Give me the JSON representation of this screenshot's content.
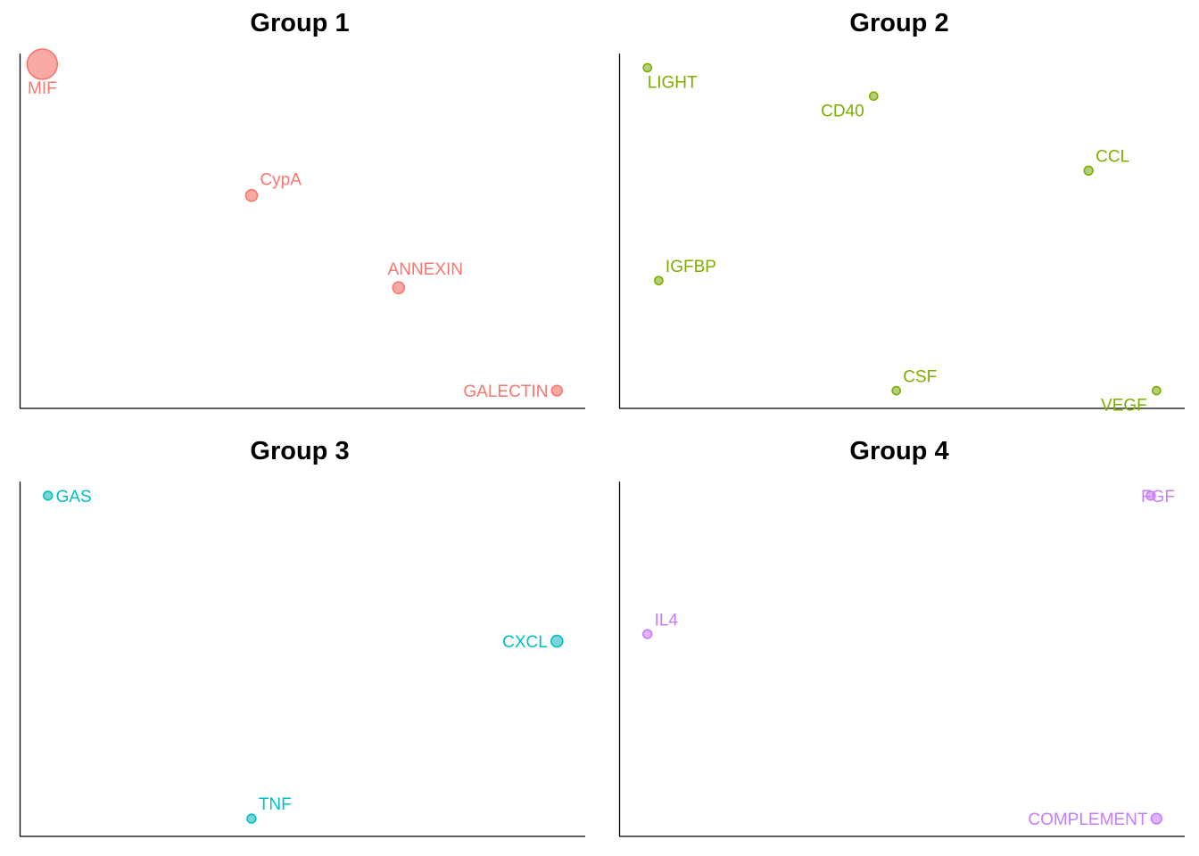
{
  "chart_data": [
    {
      "type": "scatter",
      "title": "Group 1",
      "color": "#F8766D",
      "fill": "#F8A9A4",
      "xlim": [
        0,
        1
      ],
      "ylim": [
        0,
        1
      ],
      "xlabel": "",
      "ylabel": "",
      "grid": false,
      "points": [
        {
          "label": "MIF",
          "x": 0.04,
          "y": 0.97,
          "size": 2.6,
          "label_pos": "below"
        },
        {
          "label": "CypA",
          "x": 0.41,
          "y": 0.6,
          "size": 1.0,
          "label_pos": "upper-right"
        },
        {
          "label": "ANNEXIN",
          "x": 0.67,
          "y": 0.34,
          "size": 1.0,
          "label_pos": "above"
        },
        {
          "label": "GALECTIN",
          "x": 0.95,
          "y": 0.05,
          "size": 0.9,
          "label_pos": "left"
        }
      ]
    },
    {
      "type": "scatter",
      "title": "Group 2",
      "color": "#7CAE00",
      "fill": "#B2D07A",
      "xlim": [
        0,
        1
      ],
      "ylim": [
        0,
        1
      ],
      "xlabel": "",
      "ylabel": "",
      "grid": false,
      "points": [
        {
          "label": "LIGHT",
          "x": 0.05,
          "y": 0.96,
          "size": 0.7,
          "label_pos": "lower-right"
        },
        {
          "label": "CD40",
          "x": 0.45,
          "y": 0.88,
          "size": 0.7,
          "label_pos": "lower-left"
        },
        {
          "label": "CCL",
          "x": 0.83,
          "y": 0.67,
          "size": 0.75,
          "label_pos": "upper-right"
        },
        {
          "label": "IGFBP",
          "x": 0.07,
          "y": 0.36,
          "size": 0.7,
          "label_pos": "upper-right"
        },
        {
          "label": "CSF",
          "x": 0.49,
          "y": 0.05,
          "size": 0.7,
          "label_pos": "upper-right"
        },
        {
          "label": "VEGF",
          "x": 0.95,
          "y": 0.05,
          "size": 0.7,
          "label_pos": "lower-left"
        }
      ]
    },
    {
      "type": "scatter",
      "title": "Group 3",
      "color": "#00BFC4",
      "fill": "#7ED3D5",
      "xlim": [
        0,
        1
      ],
      "ylim": [
        0,
        1
      ],
      "xlabel": "",
      "ylabel": "",
      "grid": false,
      "points": [
        {
          "label": "GAS",
          "x": 0.05,
          "y": 0.96,
          "size": 0.75,
          "label_pos": "right"
        },
        {
          "label": "CXCL",
          "x": 0.95,
          "y": 0.55,
          "size": 1.0,
          "label_pos": "left"
        },
        {
          "label": "TNF",
          "x": 0.41,
          "y": 0.05,
          "size": 0.75,
          "label_pos": "upper-right"
        }
      ]
    },
    {
      "type": "scatter",
      "title": "Group 4",
      "color": "#C77CFF",
      "fill": "#DDB5FB",
      "xlim": [
        0,
        1
      ],
      "ylim": [
        0,
        1
      ],
      "xlabel": "",
      "ylabel": "",
      "grid": false,
      "points": [
        {
          "label": "FGF",
          "x": 0.94,
          "y": 0.96,
          "size": 0.75,
          "label_pos": "overlap"
        },
        {
          "label": "IL4",
          "x": 0.05,
          "y": 0.57,
          "size": 0.75,
          "label_pos": "upper-right"
        },
        {
          "label": "COMPLEMENT",
          "x": 0.95,
          "y": 0.05,
          "size": 0.9,
          "label_pos": "left"
        }
      ]
    }
  ]
}
